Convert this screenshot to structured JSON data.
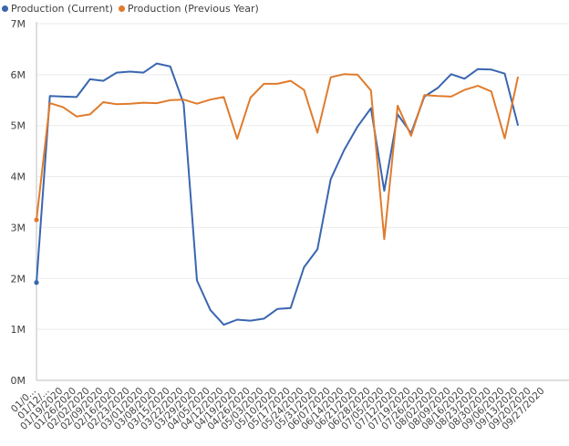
{
  "chart_data": {
    "type": "line",
    "title": "",
    "xlabel": "",
    "ylabel": "",
    "ylim": [
      0,
      7000000
    ],
    "yticks": [
      "0M",
      "1M",
      "2M",
      "3M",
      "4M",
      "5M",
      "6M",
      "7M"
    ],
    "legend_position": "top-left",
    "grid": true,
    "x": [
      "01/05/2020",
      "01/12/2020",
      "01/19/2020",
      "01/26/2020",
      "02/02/2020",
      "02/09/2020",
      "02/16/2020",
      "02/23/2020",
      "03/01/2020",
      "03/08/2020",
      "03/15/2020",
      "03/22/2020",
      "03/29/2020",
      "04/05/2020",
      "04/12/2020",
      "04/19/2020",
      "04/26/2020",
      "05/03/2020",
      "05/10/2020",
      "05/17/2020",
      "05/24/2020",
      "05/31/2020",
      "06/07/2020",
      "06/14/2020",
      "06/21/2020",
      "06/28/2020",
      "07/05/2020",
      "07/12/2020",
      "07/19/2020",
      "07/26/2020",
      "08/02/2020",
      "08/09/2020",
      "08/16/2020",
      "08/23/2020",
      "08/30/2020",
      "09/06/2020",
      "09/13/2020",
      "09/20/2020",
      "09/27/2020"
    ],
    "x_tick_labels": [
      "01/0...",
      "01/12/...",
      "01/19/2020",
      "01/26/2020",
      "02/02/2020",
      "02/09/2020",
      "02/16/2020",
      "02/23/2020",
      "03/01/2020",
      "03/08/2020",
      "03/15/2020",
      "03/22/2020",
      "03/29/2020",
      "04/05/2020",
      "04/12/2020",
      "04/19/2020",
      "04/26/2020",
      "05/03/2020",
      "05/10/2020",
      "05/17/2020",
      "05/24/2020",
      "05/31/2020",
      "06/07/2020",
      "06/14/2020",
      "06/21/2020",
      "06/28/2020",
      "07/05/2020",
      "07/12/2020",
      "07/19/2020",
      "07/26/2020",
      "08/02/2020",
      "08/09/2020",
      "08/16/2020",
      "08/23/2020",
      "08/30/2020",
      "09/06/2020",
      "09/13/2020",
      "09/20/2020",
      "09/27/2020"
    ],
    "series": [
      {
        "name": "Production (Current)",
        "color": "#3a66b0",
        "values": [
          1920000,
          5580000,
          5570000,
          5560000,
          5910000,
          5880000,
          6040000,
          6060000,
          6040000,
          6220000,
          6160000,
          5430000,
          1960000,
          1380000,
          1090000,
          1190000,
          1170000,
          1210000,
          1400000,
          1420000,
          2220000,
          2570000,
          3950000,
          4520000,
          4980000,
          5340000,
          3720000,
          5220000,
          4850000,
          5570000,
          5740000,
          6010000,
          5920000,
          6110000,
          6100000,
          6020000,
          5000000,
          null,
          null
        ],
        "marker_first": true
      },
      {
        "name": "Production (Previous Year)",
        "color": "#e07b2c",
        "values": [
          3150000,
          5440000,
          5360000,
          5180000,
          5220000,
          5460000,
          5420000,
          5430000,
          5450000,
          5440000,
          5500000,
          5510000,
          5430000,
          5510000,
          5560000,
          4740000,
          5550000,
          5820000,
          5820000,
          5880000,
          5700000,
          4860000,
          5950000,
          6010000,
          6000000,
          5690000,
          2770000,
          5390000,
          4800000,
          5600000,
          5580000,
          5570000,
          5700000,
          5780000,
          5670000,
          4750000,
          5960000,
          null,
          null
        ],
        "marker_first": true
      }
    ]
  }
}
